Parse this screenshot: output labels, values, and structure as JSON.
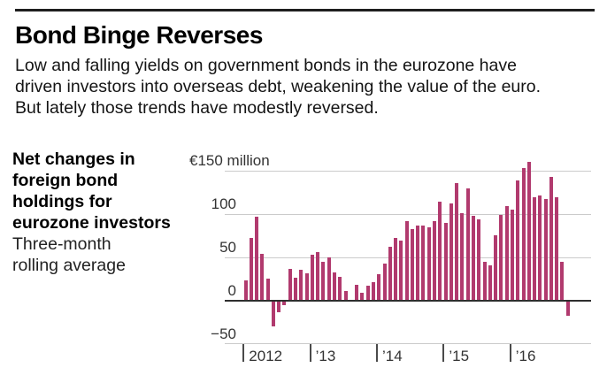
{
  "header": {
    "title": "Bond Binge Reverses",
    "intro_lines": [
      "Low and falling yields on government bonds in the eurozone have",
      "driven investors into overseas debt, weakening the value of the euro.",
      "But lately those trends have modestly reversed."
    ]
  },
  "caption": {
    "bold_lines": [
      "Net changes in",
      "foreign bond",
      "holdings for",
      "eurozone investors"
    ],
    "regular_lines": [
      "Three-month",
      "rolling average"
    ]
  },
  "chart_data": {
    "type": "bar",
    "title": "Net changes in foreign bond holdings for eurozone investors, three-month rolling average",
    "unit_label": "€150 million",
    "ylabel": "€ million",
    "ylim": [
      -50,
      165
    ],
    "grid": true,
    "legend_position": "none",
    "frequency": "monthly",
    "start_month": "2012-01",
    "end_month": "2016-11",
    "yticks": [
      {
        "value": 150,
        "label": "€150 million"
      },
      {
        "value": 100,
        "label": "100"
      },
      {
        "value": 50,
        "label": "50"
      },
      {
        "value": 0,
        "label": "0"
      },
      {
        "value": -50,
        "label": "−50"
      }
    ],
    "xticks": [
      {
        "index": 0,
        "label": "2012"
      },
      {
        "index": 12,
        "label": "’13"
      },
      {
        "index": 24,
        "label": "’14"
      },
      {
        "index": 36,
        "label": "’15"
      },
      {
        "index": 48,
        "label": "’16"
      }
    ],
    "values": [
      23,
      72,
      97,
      54,
      25,
      -30,
      -14,
      -6,
      36,
      26,
      35,
      31,
      53,
      56,
      45,
      50,
      32,
      27,
      11,
      1,
      18,
      9,
      17,
      21,
      30,
      42,
      62,
      72,
      69,
      92,
      82,
      87,
      86,
      84,
      92,
      114,
      90,
      112,
      136,
      101,
      129,
      98,
      94,
      45,
      40,
      75,
      99,
      109,
      105,
      139,
      153,
      160,
      119,
      121,
      117,
      143,
      119,
      45,
      -18
    ],
    "colors": {
      "bar": "#b13a6e",
      "grid": "#cbcbcb",
      "zero_line": "#2e2e2e",
      "tick": "#4a4a4a",
      "label": "#333333"
    }
  }
}
